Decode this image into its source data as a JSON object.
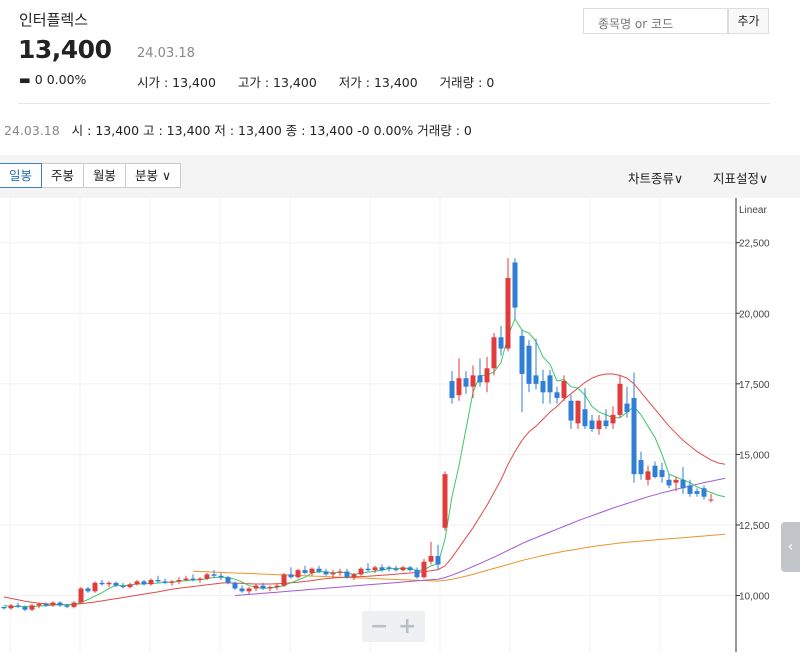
{
  "header": {
    "name": "인터플렉스",
    "price": "13,400",
    "date": "24.03.18",
    "change": "▬ 0  0.00%",
    "stats": [
      {
        "label": "시가 : 13,400"
      },
      {
        "label": "고가 : 13,400"
      },
      {
        "label": "저가 : 13,400"
      },
      {
        "label": "거래량 : 0"
      }
    ]
  },
  "search": {
    "placeholder": "종목명 or 코드",
    "button": "추가"
  },
  "day_summary": {
    "date": "24.03.18",
    "text": "시 : 13,400   고 : 13,400   저 : 13,400   종 : 13,400 -0  0.00%   거래량 : 0"
  },
  "toolbar": {
    "tabs": [
      {
        "label": "일봉"
      },
      {
        "label": "주봉"
      },
      {
        "label": "월봉"
      },
      {
        "label": "분봉 ∨"
      }
    ],
    "chart_type": "차트종류∨",
    "indicator": "지표설정∨"
  },
  "zoom": {
    "minus": "−",
    "plus": "+"
  },
  "colors": {
    "up": "#e23b3b",
    "down": "#2f7fd6",
    "ma5": "#3cc86a",
    "ma20": "#e04a4a",
    "ma60": "#a05ad6",
    "ma120": "#e8962e"
  },
  "chart_data": {
    "type": "candlestick",
    "scale": "Linear",
    "ylim": [
      8000,
      23800
    ],
    "yticks": [
      10000,
      12500,
      15000,
      17500,
      20000,
      22500
    ],
    "ytick_labels": [
      "10,000",
      "12,500",
      "15,000",
      "17,500",
      "20,000",
      "22,500"
    ],
    "candles": [
      [
        9600,
        9600,
        9500,
        9550
      ],
      [
        9550,
        9700,
        9500,
        9650
      ],
      [
        9650,
        9750,
        9550,
        9600
      ],
      [
        9600,
        9650,
        9450,
        9500
      ],
      [
        9500,
        9700,
        9450,
        9650
      ],
      [
        9650,
        9750,
        9550,
        9700
      ],
      [
        9700,
        9750,
        9600,
        9650
      ],
      [
        9650,
        9800,
        9600,
        9750
      ],
      [
        9750,
        9800,
        9600,
        9650
      ],
      [
        9650,
        9700,
        9550,
        9600
      ],
      [
        9600,
        9800,
        9550,
        9750
      ],
      [
        9750,
        10300,
        9700,
        10250
      ],
      [
        10250,
        10300,
        10100,
        10150
      ],
      [
        10150,
        10500,
        10100,
        10450
      ],
      [
        10450,
        10550,
        10350,
        10400
      ],
      [
        10400,
        10500,
        10300,
        10450
      ],
      [
        10450,
        10500,
        10300,
        10350
      ],
      [
        10350,
        10450,
        10250,
        10300
      ],
      [
        10300,
        10450,
        10250,
        10400
      ],
      [
        10400,
        10550,
        10350,
        10500
      ],
      [
        10500,
        10550,
        10350,
        10400
      ],
      [
        10400,
        10600,
        10350,
        10550
      ],
      [
        10550,
        10700,
        10450,
        10500
      ],
      [
        10500,
        10600,
        10400,
        10450
      ],
      [
        10450,
        10550,
        10350,
        10500
      ],
      [
        10500,
        10650,
        10400,
        10550
      ],
      [
        10550,
        10700,
        10500,
        10600
      ],
      [
        10600,
        10750,
        10500,
        10550
      ],
      [
        10550,
        10650,
        10450,
        10600
      ],
      [
        10600,
        10800,
        10550,
        10750
      ],
      [
        10750,
        10900,
        10650,
        10700
      ],
      [
        10700,
        10800,
        10550,
        10650
      ],
      [
        10650,
        10700,
        10400,
        10450
      ],
      [
        10450,
        10500,
        10200,
        10250
      ],
      [
        10250,
        10350,
        10100,
        10150
      ],
      [
        10150,
        10300,
        10050,
        10250
      ],
      [
        10250,
        10400,
        10150,
        10350
      ],
      [
        10350,
        10450,
        10200,
        10250
      ],
      [
        10250,
        10350,
        10150,
        10300
      ],
      [
        10300,
        10400,
        10200,
        10350
      ],
      [
        10350,
        10800,
        10300,
        10750
      ],
      [
        10750,
        11000,
        10600,
        10650
      ],
      [
        10650,
        10950,
        10600,
        10900
      ],
      [
        10900,
        11050,
        10750,
        10800
      ],
      [
        10800,
        11000,
        10700,
        10950
      ],
      [
        10950,
        11050,
        10800,
        10850
      ],
      [
        10850,
        10950,
        10700,
        10750
      ],
      [
        10750,
        10900,
        10650,
        10800
      ],
      [
        10800,
        10950,
        10700,
        10850
      ],
      [
        10850,
        10950,
        10600,
        10650
      ],
      [
        10650,
        10800,
        10550,
        10750
      ],
      [
        10750,
        11000,
        10700,
        10950
      ],
      [
        10950,
        11150,
        10850,
        10900
      ],
      [
        10900,
        11050,
        10800,
        11000
      ],
      [
        11000,
        11100,
        10850,
        10900
      ],
      [
        11000,
        11050,
        10850,
        10950
      ],
      [
        10950,
        11050,
        10850,
        10900
      ],
      [
        10900,
        11050,
        10850,
        11000
      ],
      [
        11000,
        11050,
        10850,
        10900
      ],
      [
        10900,
        11000,
        10600,
        10650
      ],
      [
        10650,
        11300,
        10600,
        11200
      ],
      [
        11200,
        11900,
        11100,
        11400
      ],
      [
        11400,
        11800,
        10900,
        11100
      ],
      [
        12400,
        14400,
        12300,
        14300
      ],
      [
        17600,
        17950,
        16800,
        17000
      ],
      [
        17100,
        18400,
        16900,
        17700
      ],
      [
        17700,
        17950,
        17150,
        17400
      ],
      [
        17400,
        18150,
        17000,
        17800
      ],
      [
        17800,
        18400,
        17400,
        17550
      ],
      [
        17550,
        18450,
        17200,
        18050
      ],
      [
        18050,
        19300,
        17800,
        19150
      ],
      [
        19150,
        19550,
        18500,
        18750
      ],
      [
        18750,
        21950,
        18650,
        21250
      ],
      [
        21800,
        21950,
        19800,
        20200
      ],
      [
        19200,
        19400,
        16500,
        17850
      ],
      [
        18850,
        19050,
        17200,
        17500
      ],
      [
        17800,
        19100,
        17300,
        17500
      ],
      [
        17600,
        18000,
        16800,
        17200
      ],
      [
        17800,
        18000,
        16800,
        17200
      ],
      [
        17200,
        17400,
        16800,
        17000
      ],
      [
        17000,
        17800,
        16900,
        17600
      ],
      [
        16900,
        17100,
        15900,
        16200
      ],
      [
        16100,
        16900,
        15900,
        16900
      ],
      [
        16600,
        17350,
        15900,
        16000
      ],
      [
        16200,
        16400,
        15800,
        15900
      ],
      [
        15900,
        16400,
        15700,
        16200
      ],
      [
        16200,
        16600,
        15900,
        16000
      ],
      [
        16100,
        16700,
        15900,
        16400
      ],
      [
        16400,
        17800,
        16300,
        17500
      ],
      [
        16800,
        17400,
        16300,
        16500
      ],
      [
        17000,
        17900,
        14000,
        14300
      ],
      [
        14800,
        15100,
        14100,
        14300
      ],
      [
        14100,
        14600,
        13900,
        14400
      ],
      [
        14600,
        14750,
        14150,
        14200
      ],
      [
        14450,
        14700,
        14000,
        14200
      ],
      [
        14100,
        14300,
        13800,
        13900
      ],
      [
        14000,
        14200,
        13700,
        14100
      ],
      [
        14100,
        14550,
        13600,
        13800
      ],
      [
        13900,
        14100,
        13500,
        13600
      ],
      [
        13700,
        13800,
        13500,
        13600
      ],
      [
        13800,
        13900,
        13400,
        13500
      ],
      [
        13400,
        13600,
        13300,
        13400
      ]
    ],
    "ma5": [
      9650,
      9600,
      9620,
      9610,
      9600,
      9630,
      9640,
      9660,
      9680,
      9670,
      9680,
      9760,
      9860,
      9980,
      10100,
      10250,
      10370,
      10350,
      10370,
      10410,
      10410,
      10430,
      10440,
      10470,
      10470,
      10500,
      10530,
      10550,
      10560,
      10600,
      10640,
      10650,
      10640,
      10580,
      10480,
      10350,
      10300,
      10250,
      10280,
      10290,
      10360,
      10450,
      10550,
      10650,
      10800,
      10850,
      10840,
      10810,
      10830,
      10790,
      10750,
      10790,
      10830,
      10860,
      10900,
      10950,
      10960,
      10960,
      10960,
      10890,
      10910,
      11050,
      11120,
      12000,
      13500,
      14600,
      15900,
      17200,
      17800,
      17800,
      17930,
      18250,
      19200,
      19800,
      19400,
      19300,
      19000,
      18450,
      18200,
      17600,
      17650,
      17400,
      17350,
      17100,
      16700,
      16500,
      16400,
      16300,
      16300,
      16500,
      16700,
      16400,
      16000,
      15600,
      15000,
      14300,
      14200,
      14100,
      14000,
      13850,
      13750,
      13650,
      13550,
      13500
    ],
    "ma20": [
      9950,
      9900,
      9850,
      9800,
      9760,
      9730,
      9710,
      9690,
      9680,
      9680,
      9690,
      9710,
      9740,
      9770,
      9810,
      9850,
      9890,
      9930,
      9970,
      10010,
      10050,
      10090,
      10130,
      10180,
      10220,
      10260,
      10290,
      10320,
      10350,
      10380,
      10410,
      10440,
      10450,
      10440,
      10430,
      10420,
      10410,
      10410,
      10410,
      10420,
      10430,
      10450,
      10470,
      10500,
      10530,
      10570,
      10600,
      10620,
      10640,
      10650,
      10660,
      10670,
      10680,
      10700,
      10720,
      10740,
      10760,
      10780,
      10800,
      10820,
      10850,
      10880,
      10920,
      11050,
      11350,
      11700,
      12050,
      12400,
      12800,
      13200,
      13650,
      14100,
      14650,
      15100,
      15500,
      15800,
      16000,
      16250,
      16500,
      16700,
      16950,
      17150,
      17350,
      17550,
      17700,
      17800,
      17850,
      17850,
      17800,
      17700,
      17500,
      17200,
      16900,
      16600,
      16300,
      16000,
      15750,
      15500,
      15300,
      15100,
      14950,
      14800,
      14700,
      14650
    ],
    "ma60": [
      null,
      null,
      null,
      null,
      null,
      null,
      null,
      null,
      null,
      null,
      null,
      null,
      null,
      null,
      null,
      null,
      null,
      null,
      null,
      null,
      null,
      null,
      null,
      null,
      null,
      null,
      null,
      null,
      null,
      null,
      null,
      null,
      null,
      10000,
      10020,
      10040,
      10060,
      10080,
      10100,
      10120,
      10140,
      10160,
      10180,
      10200,
      10220,
      10240,
      10260,
      10280,
      10300,
      10320,
      10340,
      10360,
      10380,
      10400,
      10420,
      10440,
      10460,
      10480,
      10500,
      10520,
      10540,
      10560,
      10580,
      10640,
      10720,
      10820,
      10920,
      11030,
      11140,
      11250,
      11360,
      11480,
      11600,
      11720,
      11840,
      11950,
      12050,
      12150,
      12250,
      12350,
      12450,
      12550,
      12650,
      12740,
      12830,
      12920,
      13010,
      13100,
      13180,
      13260,
      13340,
      13420,
      13500,
      13570,
      13640,
      13700,
      13760,
      13820,
      13880,
      13940,
      14000,
      14050,
      14100,
      14150
    ],
    "ma120": [
      null,
      null,
      null,
      null,
      null,
      null,
      null,
      null,
      null,
      null,
      null,
      null,
      null,
      null,
      null,
      null,
      null,
      null,
      null,
      null,
      null,
      null,
      null,
      null,
      null,
      null,
      null,
      10860,
      10850,
      10840,
      10830,
      10820,
      10810,
      10800,
      10790,
      10780,
      10770,
      10760,
      10750,
      10740,
      10730,
      10720,
      10710,
      10700,
      10690,
      10680,
      10670,
      10660,
      10650,
      10640,
      10630,
      10620,
      10610,
      10600,
      10590,
      10580,
      10570,
      10560,
      10550,
      10540,
      10530,
      10520,
      10510,
      10540,
      10580,
      10630,
      10690,
      10750,
      10820,
      10890,
      10960,
      11030,
      11100,
      11170,
      11240,
      11300,
      11360,
      11420,
      11470,
      11520,
      11570,
      11610,
      11650,
      11690,
      11730,
      11770,
      11800,
      11830,
      11860,
      11890,
      11910,
      11930,
      11950,
      11970,
      11990,
      12010,
      12030,
      12050,
      12070,
      12090,
      12110,
      12130,
      12150,
      12170
    ]
  }
}
